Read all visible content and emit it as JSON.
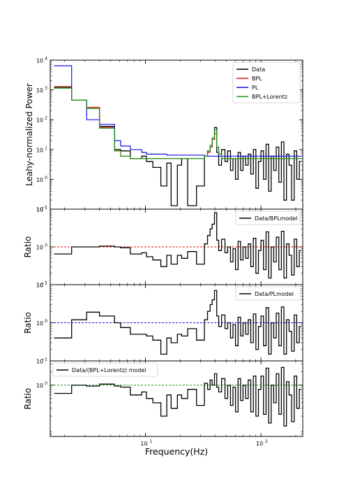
{
  "figure": {
    "xlabel": "Frequency(Hz)",
    "xscale": "log"
  },
  "chart_data": [
    {
      "type": "line",
      "panel": "top",
      "ylabel": "Leahy-normalized Power",
      "yscale": "log",
      "xlim": [
        1.5,
        230
      ],
      "ylim": [
        0.1,
        10000
      ],
      "yticks": [
        {
          "v": 0.1,
          "b": "10",
          "e": "−1"
        },
        {
          "v": 1,
          "b": "10",
          "e": "0"
        },
        {
          "v": 10,
          "b": "10",
          "e": "1"
        },
        {
          "v": 100,
          "b": "10",
          "e": "2"
        },
        {
          "v": 1000,
          "b": "10",
          "e": "3"
        },
        {
          "v": 10000,
          "b": "10",
          "e": "4"
        }
      ],
      "legend": "top-right",
      "series": [
        {
          "name": "Data",
          "color": "#000000",
          "step": true,
          "x": [
            1.62,
            2.3,
            3.1,
            4.0,
            5.4,
            6.1,
            7.4,
            9.3,
            10.2,
            11.6,
            13.6,
            15.3,
            16.7,
            18.9,
            20.6,
            23.2,
            27.7,
            32.4,
            34.5,
            36.3,
            37.8,
            39.6,
            41.4,
            43.1,
            45.6,
            48.8,
            51.5,
            54.5,
            57.3,
            60.2,
            63.4,
            66.6,
            70.0,
            73.7,
            77.6,
            81.6,
            85.9,
            90.4,
            95.1,
            100.0,
            105.2,
            110.7,
            116.5,
            122.6,
            129.0,
            135.7,
            142.8,
            150.3,
            158.1,
            166.4,
            175.1,
            184.2,
            193.8,
            204.0,
            215.0
          ],
          "y": [
            1200,
            450,
            240,
            60,
            10,
            9,
            5,
            6,
            4,
            2.5,
            0.6,
            3.5,
            0.13,
            3,
            5,
            0.13,
            0.6,
            6,
            9,
            12,
            22,
            55,
            8,
            3,
            10,
            4,
            9,
            2,
            5,
            1,
            8,
            2,
            6,
            3,
            7,
            1.5,
            10,
            0.5,
            4,
            9,
            1,
            15,
            0.4,
            6,
            2,
            12,
            0.8,
            18,
            0.2,
            7,
            3,
            0.2,
            9,
            1,
            4
          ]
        },
        {
          "name": "BPL",
          "color": "#e8120c",
          "step": true,
          "x": [
            1.62,
            2.3,
            3.1,
            4.0,
            5.4,
            6.1,
            7.4,
            9.3,
            10.2,
            11.6,
            13.6,
            15.3,
            16.7,
            18.9,
            20.6,
            23.2,
            27.7,
            32.4,
            34.5,
            36.3,
            37.8,
            39.6,
            41.4,
            43.1,
            45.6,
            48.8,
            55.0,
            70.0,
            100.0,
            150.0,
            215.0
          ],
          "y": [
            1300,
            450,
            260,
            55,
            9,
            6,
            5,
            5,
            5,
            5,
            5,
            5,
            5,
            5,
            5,
            5,
            5,
            6,
            8,
            12,
            22,
            35,
            12,
            7,
            5,
            5,
            5,
            5,
            5,
            5,
            5
          ]
        },
        {
          "name": "PL",
          "color": "#1010ee",
          "step": true,
          "x": [
            1.62,
            2.3,
            3.1,
            4.0,
            5.4,
            6.1,
            7.4,
            9.3,
            10.2,
            11.6,
            13.6,
            15.3,
            16.7,
            18.9,
            20.6,
            23.2,
            27.7,
            32.4,
            40.0,
            60.0,
            100.0,
            150.0,
            215.0
          ],
          "y": [
            6500,
            450,
            100,
            70,
            20,
            13,
            10,
            8,
            7,
            7,
            7,
            6.5,
            6.5,
            6.5,
            6.5,
            6.5,
            6.5,
            6,
            6,
            6,
            6,
            6,
            6
          ]
        },
        {
          "name": "BPL+Lorentz",
          "color": "#1a9a1a",
          "step": true,
          "x": [
            1.62,
            2.3,
            3.1,
            4.0,
            5.4,
            6.1,
            7.4,
            9.3,
            10.2,
            11.6,
            13.6,
            15.3,
            16.7,
            18.9,
            20.6,
            23.2,
            27.7,
            32.4,
            34.5,
            36.3,
            37.8,
            39.6,
            41.4,
            43.1,
            45.6,
            48.8,
            55.0,
            70.0,
            100.0,
            150.0,
            215.0
          ],
          "y": [
            1150,
            450,
            240,
            52,
            9,
            6,
            5,
            5,
            5,
            5,
            5,
            5,
            5,
            5,
            5,
            5,
            5,
            6,
            9,
            14,
            25,
            45,
            12,
            7,
            5,
            5,
            5,
            5,
            5,
            5,
            5
          ]
        }
      ]
    },
    {
      "type": "line",
      "panel": "ratio1",
      "ylabel": "Ratio",
      "yscale": "log",
      "xlim": [
        1.5,
        230
      ],
      "ylim": [
        0.1,
        10
      ],
      "yticks": [
        {
          "v": 0.1,
          "b": "10",
          "e": "−1"
        },
        {
          "v": 1,
          "b": "10",
          "e": "0"
        },
        {
          "v": 10,
          "b": "10",
          "e": "1"
        }
      ],
      "refline": {
        "y": 1,
        "color": "#e8120c"
      },
      "legend": "top-right",
      "series": [
        {
          "name": "Data/BPLmodel",
          "color": "#000000",
          "step": true,
          "x": [
            1.62,
            2.3,
            3.1,
            4.0,
            5.4,
            6.1,
            7.4,
            9.3,
            10.2,
            11.6,
            13.6,
            15.3,
            16.7,
            18.9,
            20.6,
            23.2,
            27.7,
            32.4,
            34.5,
            36.3,
            37.8,
            39.6,
            41.4,
            43.1,
            45.6,
            48.8,
            51.5,
            54.5,
            57.3,
            60.2,
            63.4,
            66.6,
            70.0,
            73.7,
            77.6,
            81.6,
            85.9,
            90.4,
            95.1,
            100.0,
            105.2,
            110.7,
            116.5,
            122.6,
            129.0,
            135.7,
            142.8,
            150.3,
            158.1,
            166.4,
            175.1,
            184.2,
            193.8,
            204.0,
            215.0
          ],
          "y": [
            0.65,
            1.0,
            1.0,
            1.05,
            1.0,
            0.95,
            0.65,
            0.7,
            0.55,
            0.45,
            0.3,
            0.6,
            0.35,
            0.6,
            0.5,
            0.75,
            0.35,
            1.2,
            2.0,
            3.0,
            4.0,
            8.0,
            1.5,
            0.8,
            1.6,
            0.7,
            1.0,
            0.4,
            0.9,
            0.25,
            1.4,
            0.45,
            1.0,
            0.5,
            1.2,
            0.3,
            1.7,
            0.2,
            0.8,
            1.5,
            0.25,
            2.5,
            0.15,
            1.0,
            0.4,
            1.8,
            0.25,
            2.6,
            0.15,
            1.2,
            0.6,
            0.18,
            1.6,
            0.3,
            0.8
          ]
        }
      ]
    },
    {
      "type": "line",
      "panel": "ratio2",
      "ylabel": "Ratio",
      "yscale": "log",
      "xlim": [
        1.5,
        230
      ],
      "ylim": [
        0.1,
        10
      ],
      "yticks": [
        {
          "v": 0.1,
          "b": "10",
          "e": "−1"
        },
        {
          "v": 1,
          "b": "10",
          "e": "0"
        },
        {
          "v": 10,
          "b": "10",
          "e": "1"
        }
      ],
      "refline": {
        "y": 1,
        "color": "#1010ee"
      },
      "legend": "top-right",
      "series": [
        {
          "name": "Data/PLmodel",
          "color": "#000000",
          "step": true,
          "x": [
            1.62,
            2.3,
            3.1,
            4.0,
            5.4,
            6.1,
            7.4,
            9.3,
            10.2,
            11.6,
            13.6,
            15.3,
            16.7,
            18.9,
            20.6,
            23.2,
            27.7,
            32.4,
            34.5,
            36.3,
            37.8,
            39.6,
            41.4,
            43.1,
            45.6,
            48.8,
            51.5,
            54.5,
            57.3,
            60.2,
            63.4,
            66.6,
            70.0,
            73.7,
            77.6,
            81.6,
            85.9,
            90.4,
            95.1,
            100.0,
            105.2,
            110.7,
            116.5,
            122.6,
            129.0,
            135.7,
            142.8,
            150.3,
            158.1,
            166.4,
            175.1,
            184.2,
            193.8,
            204.0,
            215.0
          ],
          "y": [
            0.4,
            1.2,
            1.9,
            1.5,
            1.0,
            0.75,
            0.5,
            0.5,
            0.45,
            0.35,
            0.15,
            0.4,
            0.3,
            0.5,
            0.45,
            0.7,
            0.35,
            1.2,
            2.0,
            3.0,
            4.0,
            7.0,
            1.5,
            0.8,
            1.6,
            0.7,
            1.0,
            0.4,
            0.9,
            0.25,
            1.4,
            0.45,
            1.0,
            0.5,
            1.2,
            0.3,
            1.7,
            0.2,
            0.8,
            1.5,
            0.25,
            2.5,
            0.15,
            1.0,
            0.4,
            1.8,
            0.25,
            2.6,
            0.15,
            1.2,
            0.6,
            0.18,
            1.6,
            0.3,
            0.8
          ]
        }
      ]
    },
    {
      "type": "line",
      "panel": "ratio3",
      "ylabel": "Ratio",
      "yscale": "log",
      "xlim": [
        1.5,
        230
      ],
      "ylim": [
        0.07,
        3.5
      ],
      "yticks": [
        {
          "v": 1,
          "b": "10",
          "e": "0"
        }
      ],
      "refline": {
        "y": 1,
        "color": "#1a9a1a"
      },
      "legend": "top-left",
      "series": [
        {
          "name": "Data/(BPL+Lorentz) model",
          "color": "#000000",
          "step": true,
          "x": [
            1.62,
            2.3,
            3.1,
            4.0,
            5.4,
            6.1,
            7.4,
            9.3,
            10.2,
            11.6,
            13.6,
            15.3,
            16.7,
            18.9,
            20.6,
            23.2,
            27.7,
            32.4,
            34.5,
            36.3,
            37.8,
            39.6,
            41.4,
            43.1,
            45.6,
            48.8,
            51.5,
            54.5,
            57.3,
            60.2,
            63.4,
            66.6,
            70.0,
            73.7,
            77.6,
            81.6,
            85.9,
            90.4,
            95.1,
            100.0,
            105.2,
            110.7,
            116.5,
            122.6,
            129.0,
            135.7,
            142.8,
            150.3,
            158.1,
            166.4,
            175.1,
            184.2,
            193.8,
            204.0,
            215.0
          ],
          "y": [
            0.65,
            1.0,
            0.95,
            1.05,
            0.95,
            0.9,
            0.6,
            0.7,
            0.5,
            0.4,
            0.2,
            0.6,
            0.3,
            0.6,
            0.5,
            0.8,
            0.35,
            1.1,
            0.8,
            1.3,
            1.0,
            1.8,
            0.9,
            0.7,
            1.4,
            0.5,
            1.0,
            0.35,
            0.9,
            0.25,
            1.4,
            0.45,
            1.0,
            0.5,
            1.3,
            0.25,
            1.6,
            0.2,
            0.8,
            1.6,
            0.22,
            2.4,
            0.14,
            1.0,
            0.4,
            1.8,
            0.22,
            2.5,
            0.12,
            1.2,
            0.6,
            0.15,
            1.6,
            0.3,
            0.8
          ]
        }
      ]
    }
  ],
  "xticks": [
    {
      "v": 10,
      "b": "10",
      "e": "1"
    },
    {
      "v": 100,
      "b": "10",
      "e": "2"
    }
  ]
}
